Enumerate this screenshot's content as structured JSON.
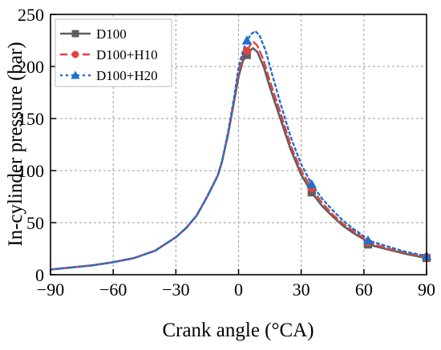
{
  "chart_data": {
    "type": "line",
    "xlabel": "Crank angle (°CA)",
    "ylabel": "In-cylinder pressure (bar)",
    "xlim": [
      -90,
      90
    ],
    "ylim": [
      0,
      250
    ],
    "xticks": [
      -90,
      -60,
      -30,
      0,
      30,
      60,
      90
    ],
    "yticks": [
      0,
      50,
      100,
      150,
      200,
      250
    ],
    "grid": true,
    "legend_position": "top-left",
    "series": [
      {
        "name": "D100",
        "color": "#5f5f5f",
        "line_style": "solid",
        "marker": "square",
        "marker_x": [
          4,
          35,
          62,
          90
        ],
        "points": [
          [
            -90,
            5
          ],
          [
            -80,
            7
          ],
          [
            -70,
            9
          ],
          [
            -60,
            12
          ],
          [
            -50,
            16
          ],
          [
            -40,
            23
          ],
          [
            -30,
            36
          ],
          [
            -25,
            45
          ],
          [
            -20,
            57
          ],
          [
            -15,
            75
          ],
          [
            -10,
            95
          ],
          [
            -8,
            108
          ],
          [
            -5,
            135
          ],
          [
            -2,
            168
          ],
          [
            0,
            190
          ],
          [
            2,
            205
          ],
          [
            4,
            211
          ],
          [
            6,
            216
          ],
          [
            7,
            217.5
          ],
          [
            9,
            214
          ],
          [
            12,
            200
          ],
          [
            15,
            180
          ],
          [
            20,
            150
          ],
          [
            25,
            120
          ],
          [
            30,
            96
          ],
          [
            35,
            79
          ],
          [
            40,
            66
          ],
          [
            45,
            56
          ],
          [
            50,
            47
          ],
          [
            55,
            40
          ],
          [
            60,
            34
          ],
          [
            62,
            29
          ],
          [
            70,
            25
          ],
          [
            80,
            20
          ],
          [
            90,
            16
          ]
        ]
      },
      {
        "name": "D100+H10",
        "color": "#e8413c",
        "line_style": "dashed",
        "marker": "circle",
        "marker_x": [
          4,
          35,
          62,
          90
        ],
        "points": [
          [
            -90,
            5
          ],
          [
            -80,
            7
          ],
          [
            -70,
            9
          ],
          [
            -60,
            12
          ],
          [
            -50,
            16
          ],
          [
            -40,
            23
          ],
          [
            -30,
            36
          ],
          [
            -25,
            45
          ],
          [
            -20,
            57
          ],
          [
            -15,
            75
          ],
          [
            -10,
            95
          ],
          [
            -8,
            108
          ],
          [
            -5,
            136
          ],
          [
            -2,
            170
          ],
          [
            0,
            194
          ],
          [
            2,
            210
          ],
          [
            4,
            215
          ],
          [
            6,
            222
          ],
          [
            7,
            224
          ],
          [
            9,
            220
          ],
          [
            12,
            206
          ],
          [
            15,
            186
          ],
          [
            20,
            156
          ],
          [
            25,
            124
          ],
          [
            30,
            100
          ],
          [
            35,
            83
          ],
          [
            40,
            69
          ],
          [
            45,
            58
          ],
          [
            50,
            49
          ],
          [
            55,
            42
          ],
          [
            60,
            35
          ],
          [
            62,
            31
          ],
          [
            70,
            26
          ],
          [
            80,
            21
          ],
          [
            90,
            17
          ]
        ]
      },
      {
        "name": "D100+H20",
        "color": "#1f6fd1",
        "line_style": "dotted",
        "marker": "triangle",
        "marker_x": [
          4,
          35,
          62,
          90
        ],
        "points": [
          [
            -90,
            5
          ],
          [
            -80,
            7
          ],
          [
            -70,
            9
          ],
          [
            -60,
            12
          ],
          [
            -50,
            16
          ],
          [
            -40,
            23
          ],
          [
            -30,
            36
          ],
          [
            -25,
            45
          ],
          [
            -20,
            57
          ],
          [
            -15,
            75
          ],
          [
            -10,
            95
          ],
          [
            -8,
            108
          ],
          [
            -5,
            137
          ],
          [
            -2,
            172
          ],
          [
            0,
            199
          ],
          [
            2,
            214
          ],
          [
            4,
            225
          ],
          [
            6,
            231
          ],
          [
            8,
            234
          ],
          [
            10,
            230
          ],
          [
            13,
            215
          ],
          [
            16,
            193
          ],
          [
            20,
            165
          ],
          [
            25,
            132
          ],
          [
            30,
            106
          ],
          [
            35,
            87
          ],
          [
            40,
            73
          ],
          [
            45,
            62
          ],
          [
            50,
            52
          ],
          [
            55,
            44
          ],
          [
            60,
            37
          ],
          [
            62,
            33
          ],
          [
            70,
            28
          ],
          [
            80,
            22
          ],
          [
            90,
            18
          ]
        ]
      }
    ]
  }
}
